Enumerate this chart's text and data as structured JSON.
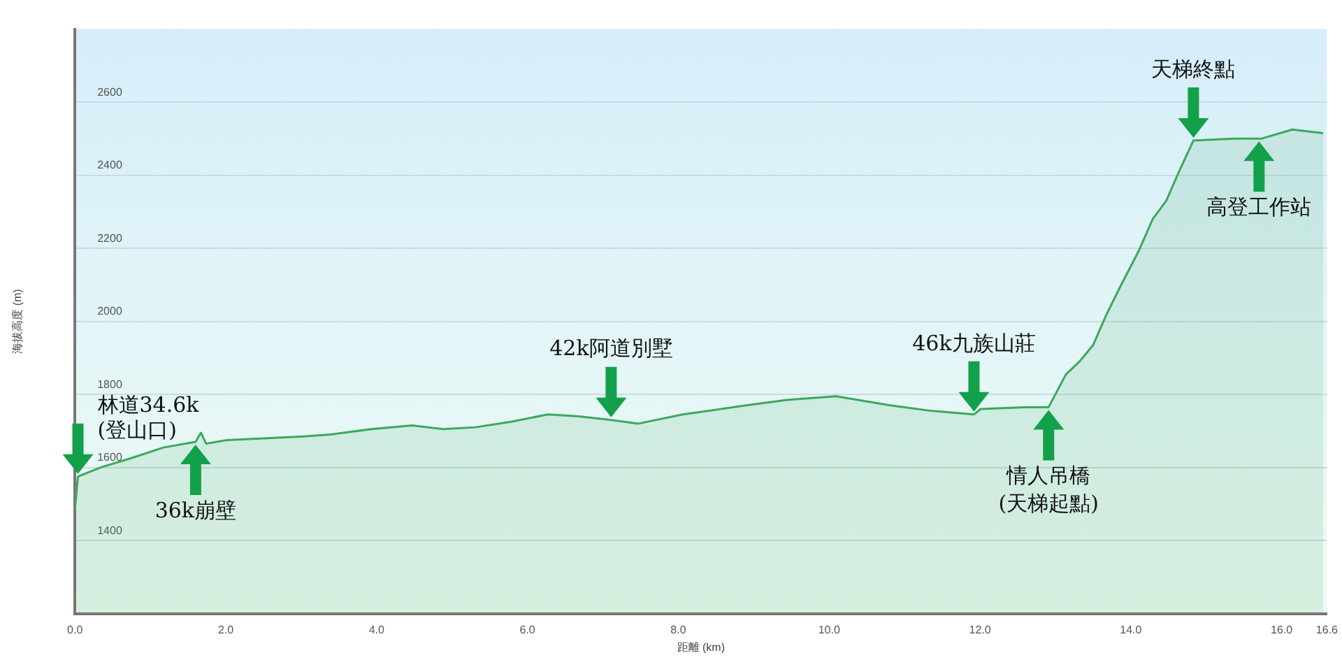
{
  "chart_data": {
    "type": "area",
    "xlabel": "距離 (km)",
    "ylabel": "海拔高度 (m)",
    "x": [
      0,
      0.04,
      0.34,
      0.74,
      1.18,
      1.6,
      1.67,
      1.74,
      2.01,
      2.55,
      3.03,
      3.39,
      3.93,
      4.47,
      4.88,
      5.31,
      5.78,
      6.27,
      6.68,
      7.11,
      7.47,
      8.06,
      8.9,
      9.44,
      10.09,
      10.81,
      11.35,
      11.92,
      12.01,
      12.6,
      12.91,
      13.14,
      13.32,
      13.5,
      13.68,
      13.86,
      14.11,
      14.29,
      14.47,
      14.65,
      14.83,
      15.37,
      15.73,
      16.14,
      16.55
    ],
    "series": [
      {
        "color": "#3da85c",
        "values": [
          1485,
          1575,
          1600,
          1625,
          1655,
          1670,
          1695,
          1665,
          1675,
          1680,
          1685,
          1690,
          1705,
          1715,
          1705,
          1710,
          1725,
          1745,
          1740,
          1730,
          1720,
          1745,
          1770,
          1785,
          1795,
          1770,
          1755,
          1745,
          1760,
          1765,
          1765,
          1855,
          1890,
          1935,
          2020,
          2095,
          2195,
          2280,
          2330,
          2415,
          2495,
          2500,
          2500,
          2525,
          2515
        ]
      }
    ],
    "xlim": [
      0,
      16.6
    ],
    "ylim": [
      1200,
      2800
    ],
    "xticks": [
      {
        "value": 0,
        "label": "0.0"
      },
      {
        "value": 2,
        "label": "2.0"
      },
      {
        "value": 4,
        "label": "4.0"
      },
      {
        "value": 6,
        "label": "6.0"
      },
      {
        "value": 8,
        "label": "8.0"
      },
      {
        "value": 10,
        "label": "10.0"
      },
      {
        "value": 12,
        "label": "12.0"
      },
      {
        "value": 14,
        "label": "14.0"
      },
      {
        "value": 16,
        "label": "16.0"
      },
      16.6
    ],
    "yticks": [
      1400,
      1600,
      1800,
      2000,
      2200,
      2400,
      2600
    ],
    "grid": "y",
    "marker": "none",
    "annotations": [
      {
        "text": "林道34.6k\n(登山口)",
        "x": 0.04,
        "y": 1575
      },
      {
        "text": "36k崩壁",
        "x": 1.6,
        "y": 1670
      },
      {
        "text": "42k阿道別墅",
        "x": 7.11,
        "y": 1730
      },
      {
        "text": "46k九族山莊",
        "x": 11.92,
        "y": 1745
      },
      {
        "text": "情人吊橋\n(天梯起點)",
        "x": 12.91,
        "y": 1765
      },
      {
        "text": "天梯終點",
        "x": 14.83,
        "y": 2495
      },
      {
        "text": "高登工作站",
        "x": 15.7,
        "y": 2500
      }
    ]
  }
}
